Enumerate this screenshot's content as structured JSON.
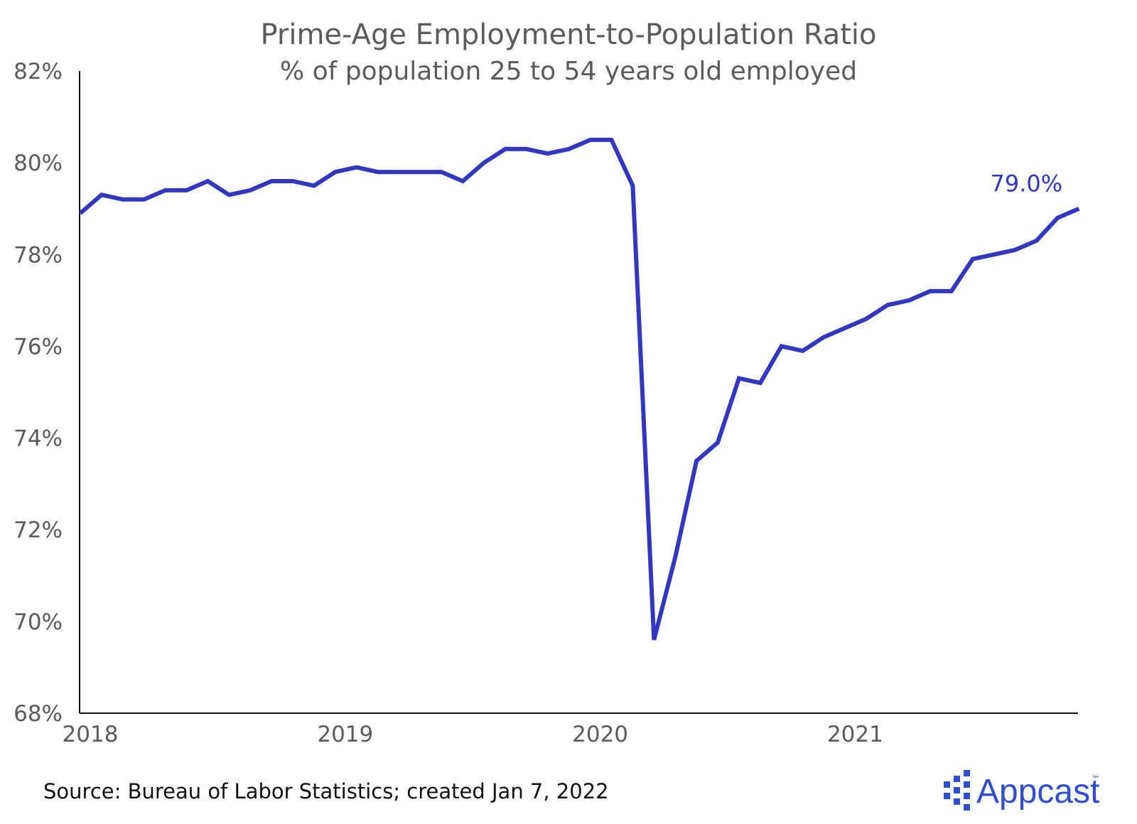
{
  "chart_data": {
    "type": "line",
    "title": "Prime-Age Employment-to-Population Ratio",
    "subtitle": "% of population 25 to 54 years old employed",
    "xlabel": "",
    "ylabel": "",
    "x_ticks": [
      "2018",
      "2019",
      "2020",
      "2021"
    ],
    "y_ticks": [
      "68%",
      "70%",
      "72%",
      "74%",
      "76%",
      "78%",
      "80%",
      "82%"
    ],
    "ylim": [
      68,
      82
    ],
    "xlim": [
      "2018-01",
      "2021-12"
    ],
    "grid": false,
    "series": [
      {
        "x": [
          "2018-01",
          "2018-02",
          "2018-03",
          "2018-04",
          "2018-05",
          "2018-06",
          "2018-07",
          "2018-08",
          "2018-09",
          "2018-10",
          "2018-11",
          "2018-12",
          "2019-01",
          "2019-02",
          "2019-03",
          "2019-04",
          "2019-05",
          "2019-06",
          "2019-07",
          "2019-08",
          "2019-09",
          "2019-10",
          "2019-11",
          "2019-12",
          "2020-01",
          "2020-02",
          "2020-03",
          "2020-04",
          "2020-05",
          "2020-06",
          "2020-07",
          "2020-08",
          "2020-09",
          "2020-10",
          "2020-11",
          "2020-12",
          "2021-01",
          "2021-02",
          "2021-03",
          "2021-04",
          "2021-05",
          "2021-06",
          "2021-07",
          "2021-08",
          "2021-09",
          "2021-10",
          "2021-11",
          "2021-12"
        ],
        "values": [
          78.9,
          79.3,
          79.2,
          79.2,
          79.4,
          79.4,
          79.6,
          79.3,
          79.4,
          79.6,
          79.6,
          79.5,
          79.8,
          79.9,
          79.8,
          79.8,
          79.8,
          79.8,
          79.6,
          80.0,
          80.3,
          80.3,
          80.2,
          80.3,
          80.5,
          80.5,
          79.5,
          69.6,
          71.4,
          73.5,
          73.9,
          75.3,
          75.2,
          76.0,
          75.9,
          76.2,
          76.4,
          76.6,
          76.9,
          77.0,
          77.2,
          77.2,
          77.9,
          78.0,
          78.1,
          78.3,
          78.8,
          79.0
        ]
      }
    ],
    "annotations": [
      {
        "text": "79.0%",
        "x": "2021-12",
        "y": 79.0
      }
    ]
  },
  "footer": {
    "source": "Source: Bureau of Labor Statistics; created Jan 7, 2022"
  },
  "brand": {
    "name": "Appcast",
    "trademark": "™"
  },
  "colors": {
    "line": "#3137c0",
    "text": "#5b5b5b",
    "axis": "#111111",
    "brand": "#2f4fd0"
  }
}
